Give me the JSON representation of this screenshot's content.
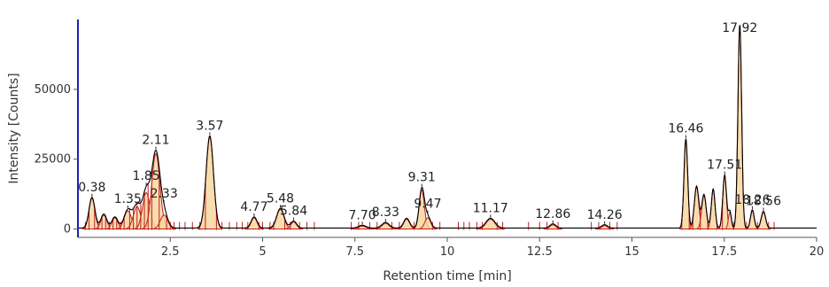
{
  "chart_data": {
    "type": "line",
    "title": "",
    "xlabel": "Retention time [min]",
    "ylabel": "Intensity [Counts]",
    "xlim": [
      0,
      20
    ],
    "ylim": [
      -3000,
      75000
    ],
    "x_ticks": [
      2.5,
      5,
      7.5,
      10,
      12.5,
      15,
      17.5,
      20
    ],
    "x_tick_labels": [
      "2.5",
      "5",
      "7.5",
      "10",
      "12.5",
      "15",
      "17.5",
      "20"
    ],
    "y_ticks": [
      0,
      25000,
      50000
    ],
    "y_tick_labels": [
      "0",
      "25000",
      "50000"
    ],
    "grid": false,
    "colors": {
      "trace": "#000000",
      "peak_fill": "#f7d7a0",
      "peak_outline": "#c22020",
      "marker": "#c22020",
      "axis": "#1f1fb4"
    },
    "peaks": [
      {
        "x": 0.38,
        "y": 11000,
        "width": 0.08
      },
      {
        "x": 0.7,
        "y": 5000,
        "width": 0.08
      },
      {
        "x": 1.0,
        "y": 4000,
        "width": 0.08
      },
      {
        "x": 1.35,
        "y": 6500,
        "width": 0.1
      },
      {
        "x": 1.6,
        "y": 8000,
        "width": 0.1
      },
      {
        "x": 1.85,
        "y": 13000,
        "width": 0.1
      },
      {
        "x": 2.11,
        "y": 27000,
        "width": 0.11
      },
      {
        "x": 2.33,
        "y": 5000,
        "width": 0.1
      },
      {
        "x": 3.57,
        "y": 33000,
        "width": 0.1
      },
      {
        "x": 4.77,
        "y": 4000,
        "width": 0.08
      },
      {
        "x": 5.48,
        "y": 7000,
        "width": 0.1
      },
      {
        "x": 5.84,
        "y": 2500,
        "width": 0.08
      },
      {
        "x": 7.7,
        "y": 1000,
        "width": 0.1
      },
      {
        "x": 8.33,
        "y": 2000,
        "width": 0.1
      },
      {
        "x": 8.9,
        "y": 3500,
        "width": 0.08
      },
      {
        "x": 9.31,
        "y": 14000,
        "width": 0.07
      },
      {
        "x": 9.47,
        "y": 4000,
        "width": 0.08
      },
      {
        "x": 11.17,
        "y": 3500,
        "width": 0.12
      },
      {
        "x": 12.86,
        "y": 1500,
        "width": 0.08
      },
      {
        "x": 14.26,
        "y": 1200,
        "width": 0.08
      },
      {
        "x": 16.46,
        "y": 32000,
        "width": 0.05
      },
      {
        "x": 16.75,
        "y": 15000,
        "width": 0.06
      },
      {
        "x": 16.95,
        "y": 12000,
        "width": 0.06
      },
      {
        "x": 17.2,
        "y": 14000,
        "width": 0.05
      },
      {
        "x": 17.51,
        "y": 19000,
        "width": 0.05
      },
      {
        "x": 17.65,
        "y": 6000,
        "width": 0.04
      },
      {
        "x": 17.92,
        "y": 73000,
        "width": 0.05
      },
      {
        "x": 18.26,
        "y": 6500,
        "width": 0.05
      },
      {
        "x": 18.56,
        "y": 6000,
        "width": 0.06
      }
    ],
    "peak_labels": [
      {
        "x": 0.38,
        "y": 11000,
        "text": "0.38"
      },
      {
        "x": 1.35,
        "y": 6500,
        "text": "1.35"
      },
      {
        "x": 1.85,
        "y": 13000,
        "text": "1.85"
      },
      {
        "x": 2.11,
        "y": 27000,
        "text": "2.11"
      },
      {
        "x": 2.33,
        "y": 5000,
        "text": "2.33"
      },
      {
        "x": 3.57,
        "y": 33000,
        "text": "3.57"
      },
      {
        "x": 4.77,
        "y": 4000,
        "text": "4.77"
      },
      {
        "x": 5.48,
        "y": 7000,
        "text": "5.48"
      },
      {
        "x": 5.84,
        "y": 2500,
        "text": "5.84"
      },
      {
        "x": 7.7,
        "y": 1000,
        "text": "7.70"
      },
      {
        "x": 8.33,
        "y": 2000,
        "text": "8.33"
      },
      {
        "x": 9.31,
        "y": 14000,
        "text": "9.31"
      },
      {
        "x": 9.47,
        "y": 4000,
        "text": "9.47"
      },
      {
        "x": 11.17,
        "y": 3500,
        "text": "11.17"
      },
      {
        "x": 12.86,
        "y": 1500,
        "text": "12.86"
      },
      {
        "x": 14.26,
        "y": 1200,
        "text": "14.26"
      },
      {
        "x": 16.46,
        "y": 32000,
        "text": "16.46"
      },
      {
        "x": 17.51,
        "y": 19000,
        "text": "17.51"
      },
      {
        "x": 17.92,
        "y": 73000,
        "text": "17.92"
      },
      {
        "x": 18.26,
        "y": 6500,
        "text": "18.26"
      },
      {
        "x": 18.56,
        "y": 6000,
        "text": "18.56"
      }
    ],
    "peak_markers": [
      0.2,
      0.3,
      0.45,
      0.55,
      0.65,
      0.75,
      0.85,
      0.95,
      1.05,
      1.15,
      1.25,
      1.4,
      1.5,
      1.6,
      1.7,
      1.8,
      1.9,
      2.0,
      2.2,
      2.4,
      2.5,
      2.6,
      2.75,
      2.9,
      3.1,
      3.3,
      3.45,
      3.75,
      3.9,
      4.1,
      4.3,
      4.45,
      4.6,
      4.9,
      5.0,
      5.2,
      5.3,
      5.6,
      5.75,
      6.0,
      6.2,
      6.4,
      7.4,
      7.6,
      7.9,
      8.1,
      8.5,
      8.7,
      9.1,
      9.6,
      9.8,
      10.3,
      10.45,
      10.6,
      10.8,
      10.95,
      11.35,
      11.5,
      12.2,
      12.5,
      12.7,
      13.0,
      13.9,
      14.1,
      14.4,
      14.6,
      16.35,
      16.55,
      16.65,
      16.85,
      17.05,
      17.3,
      17.45,
      17.75,
      18.1,
      18.4,
      18.7,
      18.85
    ]
  }
}
